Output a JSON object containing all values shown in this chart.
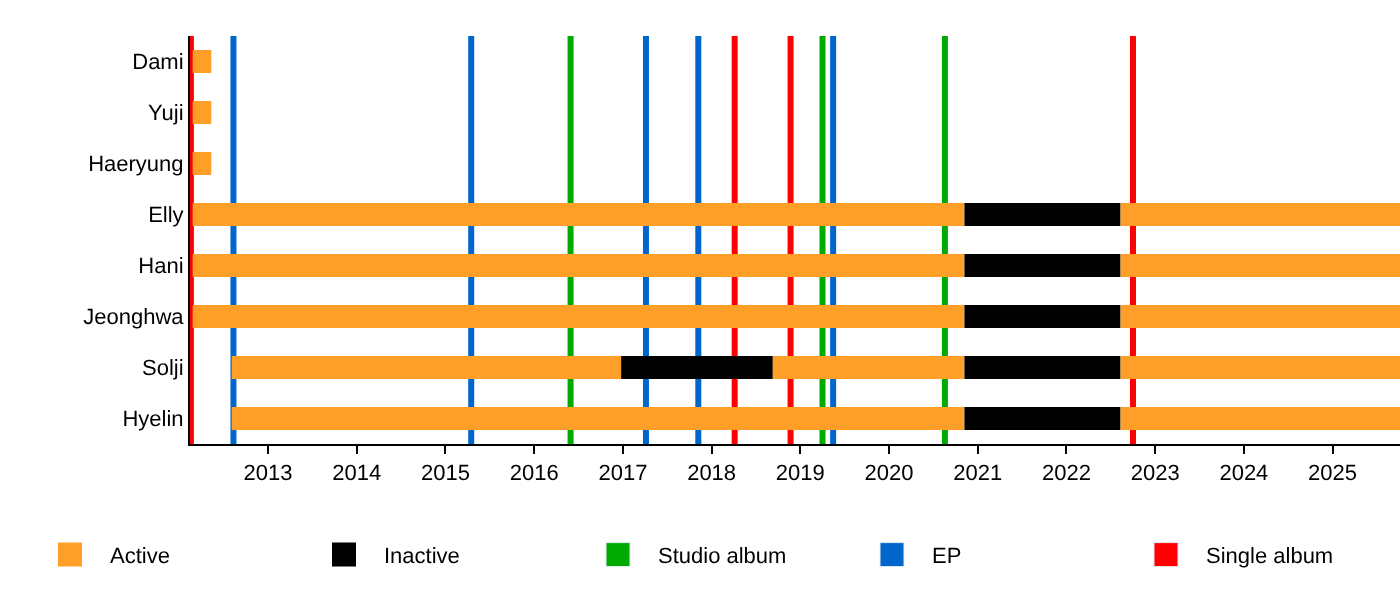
{
  "chart_data": {
    "type": "bar",
    "orientation": "horizontal",
    "categories": [
      "Dami",
      "Yuji",
      "Haeryung",
      "Elly",
      "Hani",
      "Jeonghwa",
      "Solji",
      "Hyelin"
    ],
    "series": [
      {
        "name": "Active",
        "color": "#ff9f27",
        "base": [
          2012.15,
          2012.15,
          2012.15,
          2012.15,
          2012.15,
          2012.15,
          2012.59,
          2012.59
        ],
        "values": [
          0.21,
          0.21,
          0.21,
          8.7,
          8.7,
          8.7,
          4.39,
          8.26
        ]
      },
      {
        "name": "Inactive",
        "color": "#000000",
        "base": [
          null,
          null,
          null,
          null,
          null,
          null,
          2016.98,
          null
        ],
        "values": [
          null,
          null,
          null,
          null,
          null,
          null,
          1.71,
          null
        ]
      },
      {
        "color": "#ff9f27",
        "base": [
          null,
          null,
          null,
          null,
          null,
          null,
          2018.69,
          null
        ],
        "values": [
          null,
          null,
          null,
          null,
          null,
          null,
          2.16,
          null
        ]
      },
      {
        "color": "#000000",
        "base": [
          null,
          null,
          null,
          2020.85,
          2020.85,
          2020.85,
          2020.85,
          2020.85
        ],
        "values": [
          null,
          null,
          null,
          1.76,
          1.76,
          1.76,
          1.76,
          1.76
        ]
      },
      {
        "color": "#ff9f27",
        "base": [
          null,
          null,
          null,
          2022.61,
          2022.61,
          2022.61,
          2022.61,
          2022.61
        ],
        "values": [
          null,
          null,
          null,
          3.15,
          3.15,
          3.15,
          3.15,
          3.15
        ]
      }
    ],
    "ref_lines": [
      {
        "axis": "x",
        "value": 2016.41,
        "label": "Studio album",
        "color": "#00aa00"
      },
      {
        "axis": "x",
        "value": 2019.25,
        "color": "#00aa00"
      },
      {
        "axis": "x",
        "value": 2020.63,
        "color": "#00aa00"
      },
      {
        "axis": "x",
        "value": 2012.61,
        "label": "EP",
        "color": "#0066cc"
      },
      {
        "axis": "x",
        "value": 2015.29,
        "color": "#0066cc"
      },
      {
        "axis": "x",
        "value": 2017.26,
        "color": "#0066cc"
      },
      {
        "axis": "x",
        "value": 2017.85,
        "color": "#0066cc"
      },
      {
        "axis": "x",
        "value": 2019.37,
        "color": "#0066cc"
      },
      {
        "axis": "x",
        "value": 2012.13,
        "label": "Single album",
        "color": "#ff0000"
      },
      {
        "axis": "x",
        "value": 2018.26,
        "color": "#ff0000"
      },
      {
        "axis": "x",
        "value": 2018.89,
        "color": "#ff0000"
      },
      {
        "axis": "x",
        "value": 2022.75,
        "color": "#ff0000"
      }
    ],
    "xlim": [
      2012.12,
      2025.76
    ],
    "xticks": [
      2013,
      2014,
      2015,
      2016,
      2017,
      2018,
      2019,
      2020,
      2021,
      2022,
      2023,
      2024,
      2025
    ],
    "legend": "bottom"
  }
}
